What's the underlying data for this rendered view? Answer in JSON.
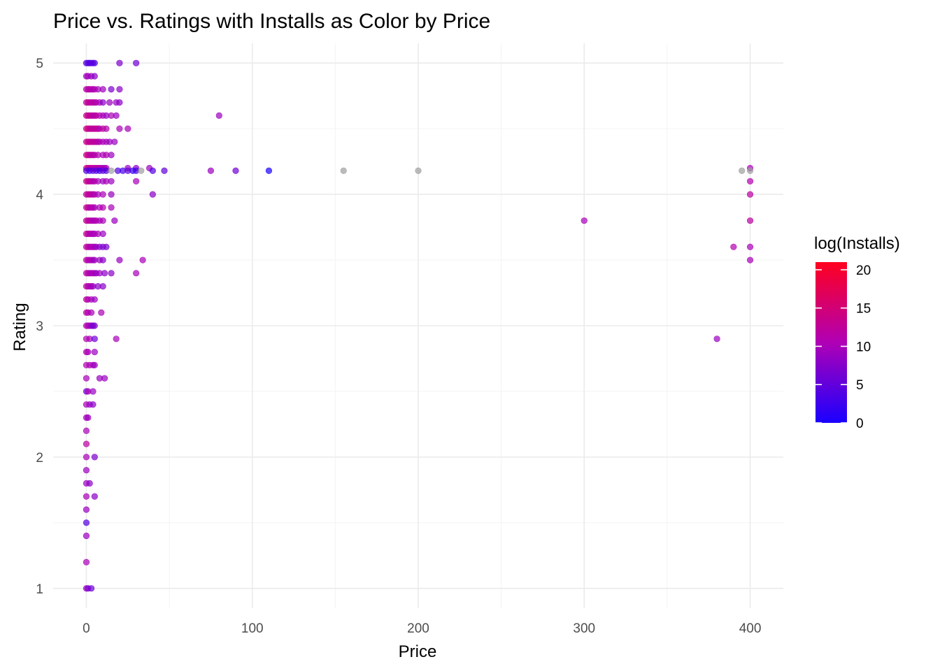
{
  "chart_data": {
    "type": "scatter",
    "title": "Price vs. Ratings with Installs as Color by Price",
    "xlabel": "Price",
    "ylabel": "Rating",
    "xlim": [
      -20,
      420
    ],
    "ylim": [
      0.85,
      5.15
    ],
    "x_ticks": [
      0,
      100,
      200,
      300,
      400
    ],
    "x_tick_labels": [
      "0",
      "100",
      "200",
      "300",
      "400"
    ],
    "y_ticks": [
      1,
      2,
      3,
      4,
      5
    ],
    "y_tick_labels": [
      "1",
      "2",
      "3",
      "4",
      "5"
    ],
    "grid": true,
    "legend": {
      "title": "log(Installs)",
      "placement": "right",
      "low_color": "#1a00ff",
      "mid_color": "#b000b5",
      "high_color": "#ff0020",
      "range": [
        0,
        21
      ],
      "ticks": [
        0,
        5,
        10,
        15,
        20
      ],
      "tick_labels": [
        "0",
        "5",
        "10",
        "15",
        "20"
      ]
    },
    "na_color": "#9e9e9e",
    "point_alpha": 0.7,
    "points": [
      {
        "x": 0,
        "y": 5.0,
        "c": 4
      },
      {
        "x": 1,
        "y": 5.0,
        "c": 5
      },
      {
        "x": 2,
        "y": 5.0,
        "c": 3
      },
      {
        "x": 3,
        "y": 5.0,
        "c": 4
      },
      {
        "x": 4,
        "y": 5.0,
        "c": 5
      },
      {
        "x": 5,
        "y": 5.0,
        "c": 4
      },
      {
        "x": 20,
        "y": 5.0,
        "c": 7
      },
      {
        "x": 30,
        "y": 5.0,
        "c": 6
      },
      {
        "x": 0,
        "y": 4.9,
        "c": 9
      },
      {
        "x": 1,
        "y": 4.9,
        "c": 10
      },
      {
        "x": 3,
        "y": 4.9,
        "c": 9
      },
      {
        "x": 5,
        "y": 4.9,
        "c": 8
      },
      {
        "x": 0,
        "y": 4.8,
        "c": 12
      },
      {
        "x": 1,
        "y": 4.8,
        "c": 11
      },
      {
        "x": 2,
        "y": 4.8,
        "c": 12
      },
      {
        "x": 3,
        "y": 4.8,
        "c": 11
      },
      {
        "x": 4,
        "y": 4.8,
        "c": 10
      },
      {
        "x": 5,
        "y": 4.8,
        "c": 11
      },
      {
        "x": 7,
        "y": 4.8,
        "c": 10
      },
      {
        "x": 10,
        "y": 4.8,
        "c": 9
      },
      {
        "x": 15,
        "y": 4.8,
        "c": 7
      },
      {
        "x": 20,
        "y": 4.8,
        "c": 8
      },
      {
        "x": 0,
        "y": 4.7,
        "c": 13
      },
      {
        "x": 1,
        "y": 4.7,
        "c": 12
      },
      {
        "x": 2,
        "y": 4.7,
        "c": 13
      },
      {
        "x": 3,
        "y": 4.7,
        "c": 12
      },
      {
        "x": 4,
        "y": 4.7,
        "c": 11
      },
      {
        "x": 5,
        "y": 4.7,
        "c": 12
      },
      {
        "x": 6,
        "y": 4.7,
        "c": 11
      },
      {
        "x": 8,
        "y": 4.7,
        "c": 10
      },
      {
        "x": 10,
        "y": 4.7,
        "c": 8
      },
      {
        "x": 14,
        "y": 4.7,
        "c": 9
      },
      {
        "x": 18,
        "y": 4.7,
        "c": 9
      },
      {
        "x": 20,
        "y": 4.7,
        "c": 8
      },
      {
        "x": 0,
        "y": 4.6,
        "c": 14
      },
      {
        "x": 1,
        "y": 4.6,
        "c": 13
      },
      {
        "x": 2,
        "y": 4.6,
        "c": 12
      },
      {
        "x": 3,
        "y": 4.6,
        "c": 13
      },
      {
        "x": 4,
        "y": 4.6,
        "c": 12
      },
      {
        "x": 5,
        "y": 4.6,
        "c": 11
      },
      {
        "x": 6,
        "y": 4.6,
        "c": 12
      },
      {
        "x": 8,
        "y": 4.6,
        "c": 11
      },
      {
        "x": 10,
        "y": 4.6,
        "c": 10
      },
      {
        "x": 12,
        "y": 4.6,
        "c": 9
      },
      {
        "x": 15,
        "y": 4.6,
        "c": 10
      },
      {
        "x": 18,
        "y": 4.6,
        "c": 9
      },
      {
        "x": 80,
        "y": 4.6,
        "c": 9
      },
      {
        "x": 0,
        "y": 4.5,
        "c": 14
      },
      {
        "x": 1,
        "y": 4.5,
        "c": 14
      },
      {
        "x": 2,
        "y": 4.5,
        "c": 13
      },
      {
        "x": 3,
        "y": 4.5,
        "c": 13
      },
      {
        "x": 4,
        "y": 4.5,
        "c": 12
      },
      {
        "x": 5,
        "y": 4.5,
        "c": 12
      },
      {
        "x": 6,
        "y": 4.5,
        "c": 13
      },
      {
        "x": 7,
        "y": 4.5,
        "c": 12
      },
      {
        "x": 8,
        "y": 4.5,
        "c": 11
      },
      {
        "x": 10,
        "y": 4.5,
        "c": 12
      },
      {
        "x": 12,
        "y": 4.5,
        "c": 11
      },
      {
        "x": 20,
        "y": 4.5,
        "c": 10
      },
      {
        "x": 25,
        "y": 4.5,
        "c": 10
      },
      {
        "x": 0,
        "y": 4.4,
        "c": 14
      },
      {
        "x": 1,
        "y": 4.4,
        "c": 13
      },
      {
        "x": 2,
        "y": 4.4,
        "c": 13
      },
      {
        "x": 3,
        "y": 4.4,
        "c": 12
      },
      {
        "x": 4,
        "y": 4.4,
        "c": 13
      },
      {
        "x": 5,
        "y": 4.4,
        "c": 12
      },
      {
        "x": 6,
        "y": 4.4,
        "c": 12
      },
      {
        "x": 7,
        "y": 4.4,
        "c": 11
      },
      {
        "x": 8,
        "y": 4.4,
        "c": 11
      },
      {
        "x": 10,
        "y": 4.4,
        "c": 10
      },
      {
        "x": 12,
        "y": 4.4,
        "c": 10
      },
      {
        "x": 14,
        "y": 4.4,
        "c": 9
      },
      {
        "x": 17,
        "y": 4.4,
        "c": 9
      },
      {
        "x": 0,
        "y": 4.3,
        "c": 14
      },
      {
        "x": 1,
        "y": 4.3,
        "c": 13
      },
      {
        "x": 2,
        "y": 4.3,
        "c": 12
      },
      {
        "x": 3,
        "y": 4.3,
        "c": 12
      },
      {
        "x": 4,
        "y": 4.3,
        "c": 12
      },
      {
        "x": 5,
        "y": 4.3,
        "c": 11
      },
      {
        "x": 7,
        "y": 4.3,
        "c": 11
      },
      {
        "x": 10,
        "y": 4.3,
        "c": 10
      },
      {
        "x": 12,
        "y": 4.3,
        "c": 11
      },
      {
        "x": 15,
        "y": 4.3,
        "c": 9
      },
      {
        "x": 0,
        "y": 4.2,
        "c": 14
      },
      {
        "x": 1,
        "y": 4.2,
        "c": 13
      },
      {
        "x": 2,
        "y": 4.2,
        "c": 13
      },
      {
        "x": 3,
        "y": 4.2,
        "c": 12
      },
      {
        "x": 4,
        "y": 4.2,
        "c": 12
      },
      {
        "x": 5,
        "y": 4.2,
        "c": 12
      },
      {
        "x": 6,
        "y": 4.2,
        "c": 11
      },
      {
        "x": 7,
        "y": 4.2,
        "c": 12
      },
      {
        "x": 8,
        "y": 4.2,
        "c": 11
      },
      {
        "x": 9,
        "y": 4.2,
        "c": 11
      },
      {
        "x": 10,
        "y": 4.2,
        "c": 10
      },
      {
        "x": 11,
        "y": 4.2,
        "c": 10
      },
      {
        "x": 12,
        "y": 4.2,
        "c": 10
      },
      {
        "x": 25,
        "y": 4.2,
        "c": 9
      },
      {
        "x": 30,
        "y": 4.2,
        "c": 8
      },
      {
        "x": 38,
        "y": 4.2,
        "c": 9
      },
      {
        "x": 400,
        "y": 4.2,
        "c": 10
      },
      {
        "x": 0,
        "y": 4.18,
        "c": 4
      },
      {
        "x": 2,
        "y": 4.18,
        "c": 3
      },
      {
        "x": 4,
        "y": 4.18,
        "c": 5
      },
      {
        "x": 6,
        "y": 4.18,
        "c": 4
      },
      {
        "x": 8,
        "y": 4.18,
        "c": 3
      },
      {
        "x": 10,
        "y": 4.18,
        "c": 5
      },
      {
        "x": 12,
        "y": 4.18,
        "c": 4
      },
      {
        "x": 15,
        "y": 4.18,
        "c": null
      },
      {
        "x": 19,
        "y": 4.18,
        "c": 4
      },
      {
        "x": 22,
        "y": 4.18,
        "c": 3
      },
      {
        "x": 25,
        "y": 4.18,
        "c": 5
      },
      {
        "x": 28,
        "y": 4.18,
        "c": 2
      },
      {
        "x": 30,
        "y": 4.18,
        "c": 3
      },
      {
        "x": 33,
        "y": 4.18,
        "c": null
      },
      {
        "x": 40,
        "y": 4.18,
        "c": 4
      },
      {
        "x": 47,
        "y": 4.18,
        "c": 5
      },
      {
        "x": 75,
        "y": 4.18,
        "c": 9
      },
      {
        "x": 90,
        "y": 4.18,
        "c": 6
      },
      {
        "x": 110,
        "y": 4.18,
        "c": 0
      },
      {
        "x": 155,
        "y": 4.18,
        "c": null
      },
      {
        "x": 200,
        "y": 4.18,
        "c": null
      },
      {
        "x": 395,
        "y": 4.18,
        "c": null
      },
      {
        "x": 400,
        "y": 4.18,
        "c": null
      },
      {
        "x": 0,
        "y": 4.1,
        "c": 14
      },
      {
        "x": 1,
        "y": 4.1,
        "c": 13
      },
      {
        "x": 2,
        "y": 4.1,
        "c": 12
      },
      {
        "x": 3,
        "y": 4.1,
        "c": 12
      },
      {
        "x": 4,
        "y": 4.1,
        "c": 11
      },
      {
        "x": 5,
        "y": 4.1,
        "c": 11
      },
      {
        "x": 7,
        "y": 4.1,
        "c": 10
      },
      {
        "x": 10,
        "y": 4.1,
        "c": 9
      },
      {
        "x": 12,
        "y": 4.1,
        "c": 10
      },
      {
        "x": 15,
        "y": 4.1,
        "c": 9
      },
      {
        "x": 30,
        "y": 4.1,
        "c": 10
      },
      {
        "x": 400,
        "y": 4.1,
        "c": 11
      },
      {
        "x": 0,
        "y": 4.0,
        "c": 13
      },
      {
        "x": 1,
        "y": 4.0,
        "c": 12
      },
      {
        "x": 2,
        "y": 4.0,
        "c": 13
      },
      {
        "x": 3,
        "y": 4.0,
        "c": 12
      },
      {
        "x": 4,
        "y": 4.0,
        "c": 11
      },
      {
        "x": 5,
        "y": 4.0,
        "c": 11
      },
      {
        "x": 7,
        "y": 4.0,
        "c": 10
      },
      {
        "x": 10,
        "y": 4.0,
        "c": 10
      },
      {
        "x": 15,
        "y": 4.0,
        "c": 9
      },
      {
        "x": 40,
        "y": 4.0,
        "c": 8
      },
      {
        "x": 400,
        "y": 4.0,
        "c": 12
      },
      {
        "x": 0,
        "y": 3.9,
        "c": 13
      },
      {
        "x": 1,
        "y": 3.9,
        "c": 12
      },
      {
        "x": 2,
        "y": 3.9,
        "c": 12
      },
      {
        "x": 3,
        "y": 3.9,
        "c": 11
      },
      {
        "x": 4,
        "y": 3.9,
        "c": 11
      },
      {
        "x": 5,
        "y": 3.9,
        "c": 10
      },
      {
        "x": 8,
        "y": 3.9,
        "c": 10
      },
      {
        "x": 10,
        "y": 3.9,
        "c": 11
      },
      {
        "x": 15,
        "y": 3.9,
        "c": 10
      },
      {
        "x": 0,
        "y": 3.8,
        "c": 13
      },
      {
        "x": 1,
        "y": 3.8,
        "c": 12
      },
      {
        "x": 2,
        "y": 3.8,
        "c": 12
      },
      {
        "x": 3,
        "y": 3.8,
        "c": 11
      },
      {
        "x": 4,
        "y": 3.8,
        "c": 11
      },
      {
        "x": 5,
        "y": 3.8,
        "c": 10
      },
      {
        "x": 6,
        "y": 3.8,
        "c": 11
      },
      {
        "x": 8,
        "y": 3.8,
        "c": 10
      },
      {
        "x": 10,
        "y": 3.8,
        "c": 10
      },
      {
        "x": 17,
        "y": 3.8,
        "c": 9
      },
      {
        "x": 300,
        "y": 3.8,
        "c": 10
      },
      {
        "x": 400,
        "y": 3.8,
        "c": 12
      },
      {
        "x": 0,
        "y": 3.7,
        "c": 13
      },
      {
        "x": 1,
        "y": 3.7,
        "c": 12
      },
      {
        "x": 2,
        "y": 3.7,
        "c": 11
      },
      {
        "x": 3,
        "y": 3.7,
        "c": 11
      },
      {
        "x": 4,
        "y": 3.7,
        "c": 10
      },
      {
        "x": 5,
        "y": 3.7,
        "c": 10
      },
      {
        "x": 7,
        "y": 3.7,
        "c": 10
      },
      {
        "x": 10,
        "y": 3.7,
        "c": 9
      },
      {
        "x": 0,
        "y": 3.6,
        "c": 12
      },
      {
        "x": 1,
        "y": 3.6,
        "c": 12
      },
      {
        "x": 2,
        "y": 3.6,
        "c": 11
      },
      {
        "x": 3,
        "y": 3.6,
        "c": 11
      },
      {
        "x": 4,
        "y": 3.6,
        "c": 10
      },
      {
        "x": 5,
        "y": 3.6,
        "c": 10
      },
      {
        "x": 6,
        "y": 3.6,
        "c": 9
      },
      {
        "x": 8,
        "y": 3.6,
        "c": 8
      },
      {
        "x": 10,
        "y": 3.6,
        "c": 7
      },
      {
        "x": 12,
        "y": 3.6,
        "c": 7
      },
      {
        "x": 390,
        "y": 3.6,
        "c": 11
      },
      {
        "x": 400,
        "y": 3.6,
        "c": 10
      },
      {
        "x": 0,
        "y": 3.5,
        "c": 12
      },
      {
        "x": 1,
        "y": 3.5,
        "c": 11
      },
      {
        "x": 2,
        "y": 3.5,
        "c": 10
      },
      {
        "x": 3,
        "y": 3.5,
        "c": 11
      },
      {
        "x": 4,
        "y": 3.5,
        "c": 10
      },
      {
        "x": 5,
        "y": 3.5,
        "c": 9
      },
      {
        "x": 8,
        "y": 3.5,
        "c": 9
      },
      {
        "x": 10,
        "y": 3.5,
        "c": 8
      },
      {
        "x": 20,
        "y": 3.5,
        "c": 9
      },
      {
        "x": 34,
        "y": 3.5,
        "c": 10
      },
      {
        "x": 400,
        "y": 3.5,
        "c": 10
      },
      {
        "x": 0,
        "y": 3.4,
        "c": 12
      },
      {
        "x": 1,
        "y": 3.4,
        "c": 11
      },
      {
        "x": 2,
        "y": 3.4,
        "c": 11
      },
      {
        "x": 3,
        "y": 3.4,
        "c": 10
      },
      {
        "x": 4,
        "y": 3.4,
        "c": 10
      },
      {
        "x": 5,
        "y": 3.4,
        "c": 10
      },
      {
        "x": 6,
        "y": 3.4,
        "c": 9
      },
      {
        "x": 8,
        "y": 3.4,
        "c": 9
      },
      {
        "x": 11,
        "y": 3.4,
        "c": 8
      },
      {
        "x": 15,
        "y": 3.4,
        "c": 8
      },
      {
        "x": 30,
        "y": 3.4,
        "c": 10
      },
      {
        "x": 0,
        "y": 3.3,
        "c": 12
      },
      {
        "x": 1,
        "y": 3.3,
        "c": 11
      },
      {
        "x": 2,
        "y": 3.3,
        "c": 11
      },
      {
        "x": 3,
        "y": 3.3,
        "c": 10
      },
      {
        "x": 4,
        "y": 3.3,
        "c": 9
      },
      {
        "x": 7,
        "y": 3.3,
        "c": 8
      },
      {
        "x": 10,
        "y": 3.3,
        "c": 8
      },
      {
        "x": 0,
        "y": 3.2,
        "c": 12
      },
      {
        "x": 1,
        "y": 3.2,
        "c": 11
      },
      {
        "x": 3,
        "y": 3.2,
        "c": 10
      },
      {
        "x": 5,
        "y": 3.2,
        "c": 9
      },
      {
        "x": 0,
        "y": 3.1,
        "c": 12
      },
      {
        "x": 1,
        "y": 3.1,
        "c": 11
      },
      {
        "x": 3,
        "y": 3.1,
        "c": 10
      },
      {
        "x": 9,
        "y": 3.1,
        "c": 10
      },
      {
        "x": 0,
        "y": 3.0,
        "c": 11
      },
      {
        "x": 1,
        "y": 3.0,
        "c": 10
      },
      {
        "x": 2,
        "y": 3.0,
        "c": 11
      },
      {
        "x": 3,
        "y": 3.0,
        "c": 9
      },
      {
        "x": 4,
        "y": 3.0,
        "c": 6
      },
      {
        "x": 5,
        "y": 3.0,
        "c": 7
      },
      {
        "x": 0,
        "y": 2.9,
        "c": 11
      },
      {
        "x": 2,
        "y": 2.9,
        "c": 10
      },
      {
        "x": 5,
        "y": 2.9,
        "c": 6
      },
      {
        "x": 18,
        "y": 2.9,
        "c": 10
      },
      {
        "x": 380,
        "y": 2.9,
        "c": 9
      },
      {
        "x": 0,
        "y": 2.8,
        "c": 11
      },
      {
        "x": 1,
        "y": 2.8,
        "c": 10
      },
      {
        "x": 5,
        "y": 2.8,
        "c": 9
      },
      {
        "x": 0,
        "y": 2.7,
        "c": 11
      },
      {
        "x": 2,
        "y": 2.7,
        "c": 10
      },
      {
        "x": 4,
        "y": 2.7,
        "c": 10
      },
      {
        "x": 5,
        "y": 2.7,
        "c": 9
      },
      {
        "x": 0,
        "y": 2.6,
        "c": 10
      },
      {
        "x": 8,
        "y": 2.6,
        "c": 9
      },
      {
        "x": 11,
        "y": 2.6,
        "c": 9
      },
      {
        "x": 0,
        "y": 2.5,
        "c": 6
      },
      {
        "x": 1,
        "y": 2.5,
        "c": 10
      },
      {
        "x": 4,
        "y": 2.5,
        "c": 9
      },
      {
        "x": 0,
        "y": 2.4,
        "c": 10
      },
      {
        "x": 2,
        "y": 2.4,
        "c": 9
      },
      {
        "x": 4,
        "y": 2.4,
        "c": 8
      },
      {
        "x": 0,
        "y": 2.3,
        "c": 10
      },
      {
        "x": 1,
        "y": 2.3,
        "c": 9
      },
      {
        "x": 0,
        "y": 2.2,
        "c": 10
      },
      {
        "x": 0,
        "y": 2.1,
        "c": 12
      },
      {
        "x": 0,
        "y": 2.0,
        "c": 10
      },
      {
        "x": 5,
        "y": 2.0,
        "c": 7
      },
      {
        "x": 0,
        "y": 1.9,
        "c": 9
      },
      {
        "x": 0,
        "y": 1.8,
        "c": 9
      },
      {
        "x": 2,
        "y": 1.8,
        "c": 8
      },
      {
        "x": 0,
        "y": 1.7,
        "c": 10
      },
      {
        "x": 5,
        "y": 1.7,
        "c": 8
      },
      {
        "x": 0,
        "y": 1.6,
        "c": 9
      },
      {
        "x": 0,
        "y": 1.5,
        "c": 4
      },
      {
        "x": 0,
        "y": 1.4,
        "c": 9
      },
      {
        "x": 0,
        "y": 1.2,
        "c": 10
      },
      {
        "x": 0,
        "y": 1.0,
        "c": 9
      },
      {
        "x": 1,
        "y": 1.0,
        "c": 7
      },
      {
        "x": 3,
        "y": 1.0,
        "c": 6
      }
    ]
  }
}
